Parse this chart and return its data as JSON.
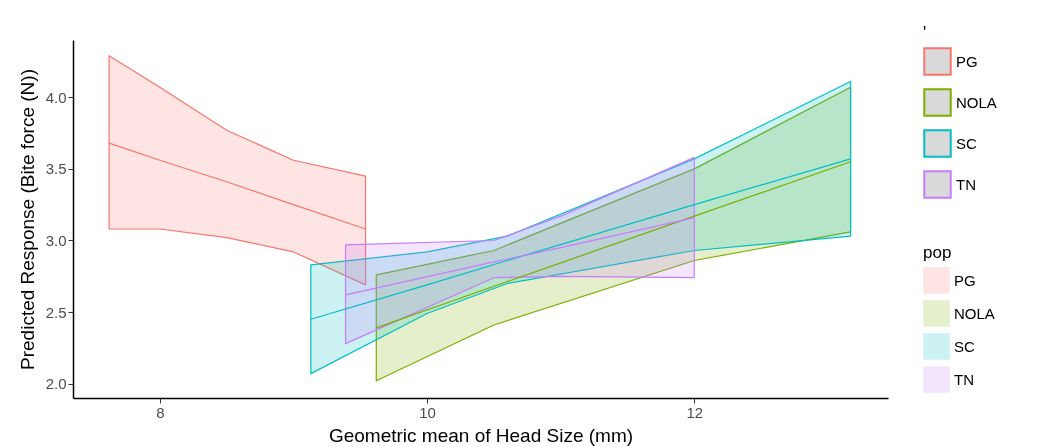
{
  "chart_data": {
    "type": "line",
    "xlabel": "Geometric mean of Head Size (mm)",
    "ylabel": "Predicted Response (Bite force (N))",
    "legend_title": "pop",
    "annotations": [
      "'"
    ],
    "legend": "right",
    "grid": false,
    "xlim": [
      7.35,
      13.45
    ],
    "xticks": [
      8,
      10,
      12
    ],
    "ylim": [
      1.9,
      4.4
    ],
    "yticks": [
      {
        "value": 2,
        "label": "2.0"
      },
      {
        "value": 2.5,
        "label": "2.5"
      },
      {
        "value": 3,
        "label": "3.0"
      },
      {
        "value": 3.5,
        "label": "3.5"
      },
      {
        "value": 4,
        "label": "4.0"
      }
    ],
    "series": [
      {
        "name": "PG",
        "color": "#f8766d",
        "x": [
          7.62,
          8.0,
          8.5,
          9.0,
          9.54
        ],
        "values": [
          3.68,
          3.56,
          3.41,
          3.25,
          3.08
        ],
        "lower": [
          3.08,
          3.08,
          3.02,
          2.92,
          2.69
        ],
        "upper": [
          4.29,
          4.07,
          3.77,
          3.56,
          3.45
        ]
      },
      {
        "name": "NOLA",
        "color": "#7cae00",
        "x": [
          9.62,
          10.5,
          12.0,
          13.17
        ],
        "values": [
          2.39,
          2.68,
          3.17,
          3.55
        ],
        "lower": [
          2.02,
          2.41,
          2.86,
          3.06
        ],
        "upper": [
          2.76,
          2.93,
          3.5,
          4.07
        ]
      },
      {
        "name": "SC",
        "color": "#00bfc4",
        "x": [
          9.13,
          10.0,
          10.6,
          12.0,
          13.17
        ],
        "values": [
          2.45,
          2.69,
          2.86,
          3.25,
          3.57
        ],
        "lower": [
          2.07,
          2.49,
          2.7,
          2.93,
          3.03
        ],
        "upper": [
          2.83,
          2.92,
          3.03,
          3.57,
          4.11
        ]
      },
      {
        "name": "TN",
        "color": "#c77cff",
        "x": [
          9.39,
          10.5,
          11.0,
          12.0
        ],
        "values": [
          2.62,
          2.85,
          2.95,
          3.16
        ],
        "lower": [
          2.28,
          2.74,
          2.75,
          2.74
        ],
        "upper": [
          2.97,
          3.0,
          3.17,
          3.58
        ]
      }
    ]
  }
}
